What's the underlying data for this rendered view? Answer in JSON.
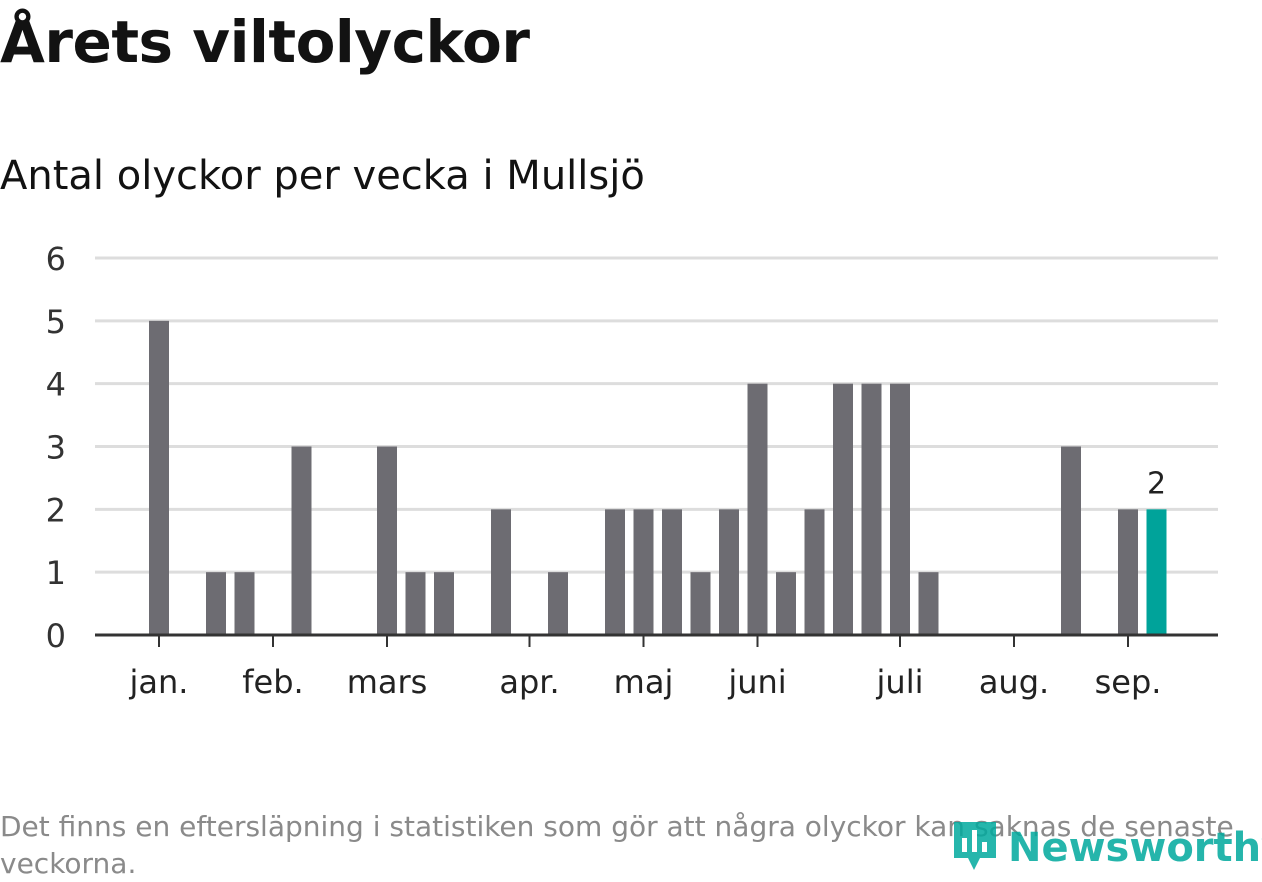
{
  "title": "Årets viltolyckor",
  "subtitle": "Antal olyckor per vecka i Mullsjö",
  "footnote": "Det finns en eftersläpning i statistiken som gör att några olyckor kan saknas de senaste veckorna.",
  "brand": {
    "name": "Newsworthy",
    "color": "#00a99d"
  },
  "colors": {
    "bar": "#6d6c72",
    "highlight": "#00a39a",
    "grid": "#dddddd",
    "axis": "#333333"
  },
  "chart_data": {
    "type": "bar",
    "weeks": [
      1,
      2,
      3,
      4,
      5,
      6,
      7,
      8,
      9,
      10,
      11,
      12,
      13,
      14,
      15,
      16,
      17,
      18,
      19,
      20,
      21,
      22,
      23,
      24,
      25,
      26,
      27,
      28,
      29,
      30,
      31,
      32,
      33,
      34,
      35,
      36,
      37,
      38
    ],
    "values": [
      0,
      0,
      5,
      0,
      1,
      1,
      0,
      3,
      0,
      0,
      3,
      1,
      1,
      0,
      2,
      0,
      1,
      0,
      2,
      2,
      2,
      1,
      2,
      4,
      1,
      2,
      4,
      4,
      4,
      1,
      0,
      0,
      0,
      0,
      3,
      0,
      2,
      2
    ],
    "highlight_index": 37,
    "highlight_label": "2",
    "ylim": [
      0,
      6
    ],
    "yticks": [
      "0",
      "1",
      "2",
      "3",
      "4",
      "5",
      "6"
    ],
    "xticks": [
      {
        "label": "jan.",
        "week": 3
      },
      {
        "label": "feb.",
        "week": 7
      },
      {
        "label": "mars",
        "week": 11
      },
      {
        "label": "apr.",
        "week": 16
      },
      {
        "label": "maj",
        "week": 20
      },
      {
        "label": "juni",
        "week": 24
      },
      {
        "label": "juli",
        "week": 29
      },
      {
        "label": "aug.",
        "week": 33
      },
      {
        "label": "sep.",
        "week": 37
      }
    ],
    "grid": true
  }
}
